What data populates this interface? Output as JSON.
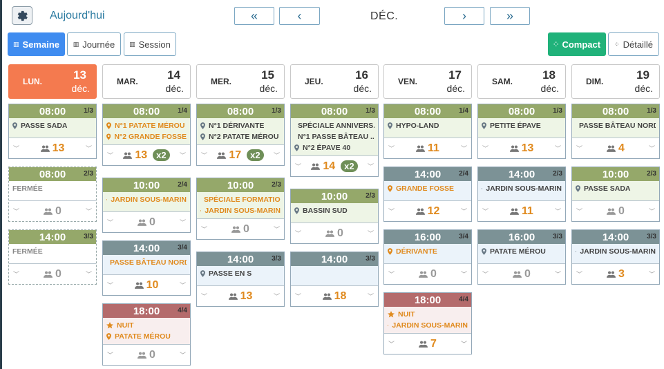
{
  "header": {
    "today_label": "Aujourd'hui",
    "month": "DÉC.",
    "prev_prev": "«",
    "prev": "‹",
    "next": "›",
    "next_next": "»"
  },
  "views": {
    "week": "Semaine",
    "day": "Journée",
    "session": "Session",
    "compact": "Compact",
    "detailed": "Détaillé"
  },
  "colors": {
    "today": "#f47a4f",
    "accent": "#3f8cf0",
    "green": "#20b27a",
    "orange": "#e08a1e"
  },
  "days": [
    {
      "name": "LUN.",
      "num": "13",
      "month": "déc."
    },
    {
      "name": "MAR.",
      "num": "14",
      "month": "déc."
    },
    {
      "name": "MER.",
      "num": "15",
      "month": "déc."
    },
    {
      "name": "JEU.",
      "num": "16",
      "month": "déc."
    },
    {
      "name": "VEN.",
      "num": "17",
      "month": "déc."
    },
    {
      "name": "SAM.",
      "num": "18",
      "month": "déc."
    },
    {
      "name": "DIM.",
      "num": "19",
      "month": "déc."
    }
  ],
  "sessions": {
    "d0": [
      {
        "time": "08:00",
        "count": "1/3",
        "lines": [
          "PASSE SADA"
        ],
        "people": "13"
      },
      {
        "time": "08:00",
        "count": "2/3",
        "lines": [
          "FERMÉE"
        ],
        "people": "0"
      },
      {
        "time": "14:00",
        "count": "3/3",
        "lines": [
          "FERMÉE"
        ],
        "people": "0"
      }
    ],
    "d1": [
      {
        "time": "08:00",
        "count": "1/4",
        "lines": [
          "N°1 PATATE MÉROU",
          "N°2 GRANDE FOSSE"
        ],
        "people": "13",
        "mult": "x2"
      },
      {
        "time": "10:00",
        "count": "2/4",
        "lines": [
          "JARDIN SOUS-MARIN"
        ],
        "people": "0"
      },
      {
        "time": "14:00",
        "count": "3/4",
        "lines": [
          "PASSE BÂTEAU NORD"
        ],
        "people": "10"
      },
      {
        "time": "18:00",
        "count": "4/4",
        "lines": [
          "NUIT",
          "PATATE MÉROU"
        ],
        "people": "0"
      }
    ],
    "d2": [
      {
        "time": "08:00",
        "count": "1/3",
        "lines": [
          "N°1 DÉRIVANTE",
          "N°2 PATATE MÉROU"
        ],
        "people": "17",
        "mult": "x2"
      },
      {
        "time": "10:00",
        "count": "2/3",
        "lines": [
          "SPÉCIALE FORMATIO...",
          "JARDIN SOUS-MARIN"
        ],
        "people": "0"
      },
      {
        "time": "14:00",
        "count": "3/3",
        "lines": [
          "PASSE EN S"
        ],
        "people": "13"
      }
    ],
    "d3": [
      {
        "time": "08:00",
        "count": "1/3",
        "lines": [
          "SPÉCIALE ANNIVERS...",
          "N°1 PASSE BÂTEAU ...",
          "N°2 ÉPAVE 40"
        ],
        "people": "14",
        "mult": "x2"
      },
      {
        "time": "10:00",
        "count": "2/3",
        "lines": [
          "BASSIN SUD"
        ],
        "people": "0"
      },
      {
        "time": "14:00",
        "count": "3/3",
        "lines": [],
        "people": "18"
      }
    ],
    "d4": [
      {
        "time": "08:00",
        "count": "1/4",
        "lines": [
          "HYPO-LAND"
        ],
        "people": "11"
      },
      {
        "time": "14:00",
        "count": "2/4",
        "lines": [
          "GRANDE FOSSE"
        ],
        "people": "12"
      },
      {
        "time": "16:00",
        "count": "3/4",
        "lines": [
          "DÉRIVANTE"
        ],
        "people": "0"
      },
      {
        "time": "18:00",
        "count": "4/4",
        "lines": [
          "NUIT",
          "JARDIN SOUS-MARIN"
        ],
        "people": "7"
      }
    ],
    "d5": [
      {
        "time": "08:00",
        "count": "1/3",
        "lines": [
          "PETITE ÉPAVE"
        ],
        "people": "13"
      },
      {
        "time": "14:00",
        "count": "2/3",
        "lines": [
          "JARDIN SOUS-MARIN"
        ],
        "people": "11"
      },
      {
        "time": "16:00",
        "count": "3/3",
        "lines": [
          "PATATE MÉROU"
        ],
        "people": "0"
      }
    ],
    "d6": [
      {
        "time": "08:00",
        "count": "1/3",
        "lines": [
          "PASSE BÂTEAU NORD"
        ],
        "people": "4"
      },
      {
        "time": "10:00",
        "count": "2/3",
        "lines": [
          "PASSE SADA"
        ],
        "people": "0"
      },
      {
        "time": "14:00",
        "count": "3/3",
        "lines": [
          "JARDIN SOUS-MARIN"
        ],
        "people": "3"
      }
    ]
  }
}
